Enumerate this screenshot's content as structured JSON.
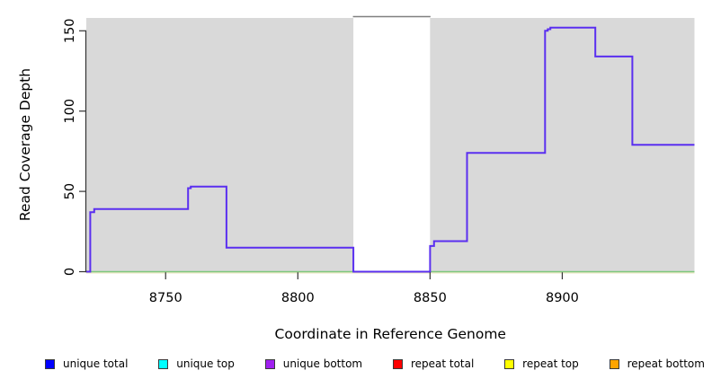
{
  "chart_data": {
    "type": "line",
    "subtype": "step-coverage-profile",
    "title": "",
    "xlabel": "Coordinate in Reference Genome",
    "ylabel": "Read Coverage Depth",
    "xlim": [
      8720,
      8950
    ],
    "ylim": [
      0,
      158
    ],
    "x_ticks": [
      "8750",
      "8800",
      "8850",
      "8900"
    ],
    "y_ticks": [
      "0",
      "50",
      "100",
      "150"
    ],
    "grid": "off",
    "legend_position": "bottom",
    "panel_bg": "#d9d9d9",
    "highlight_region": {
      "x1": 8821,
      "x2": 8850,
      "color": "#ffffff",
      "top_border": "#808080"
    },
    "coverage_segments": [
      [
        8720.0,
        8721.5,
        0
      ],
      [
        8721.5,
        8723.0,
        37
      ],
      [
        8723.0,
        8758.5,
        39
      ],
      [
        8758.5,
        8759.5,
        52
      ],
      [
        8759.5,
        8773.0,
        53
      ],
      [
        8773.0,
        8821.0,
        15
      ],
      [
        8821.0,
        8850.0,
        0
      ],
      [
        8850.0,
        8851.5,
        16
      ],
      [
        8851.5,
        8864.0,
        19
      ],
      [
        8864.0,
        8893.5,
        74
      ],
      [
        8893.5,
        8894.5,
        150
      ],
      [
        8894.5,
        8895.5,
        151
      ],
      [
        8895.5,
        8912.5,
        152
      ],
      [
        8912.5,
        8926.5,
        134
      ],
      [
        8926.5,
        8950.0,
        79
      ]
    ],
    "series": [
      {
        "name": "unique total",
        "color": "#0000ff",
        "data": "coverage_segments"
      },
      {
        "name": "unique top",
        "color": "#00ffff",
        "data": "zero"
      },
      {
        "name": "unique bottom",
        "color": "#a020f0",
        "data": "coverage_segments"
      },
      {
        "name": "repeat total",
        "color": "#ff0000",
        "data": "zero"
      },
      {
        "name": "repeat top",
        "color": "#ffff00",
        "data": "zero"
      },
      {
        "name": "repeat bottom",
        "color": "#ffa500",
        "data": "zero"
      }
    ],
    "render": {
      "step_stroke": "#5a2ff0",
      "baseline_strokes": [
        "#ece7c3",
        "#7cc87c"
      ],
      "axis_color": "#333333"
    }
  }
}
